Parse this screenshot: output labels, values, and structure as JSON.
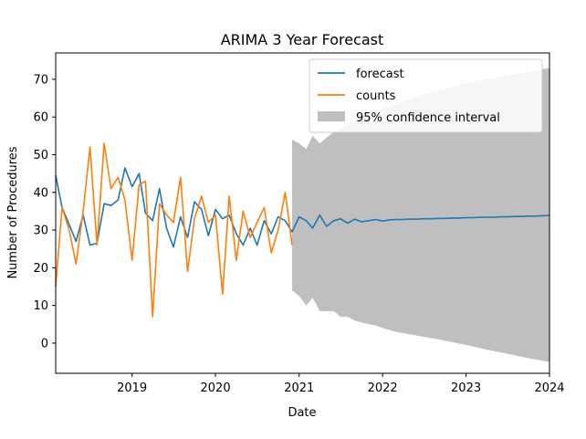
{
  "chart_data": {
    "type": "line",
    "title": "ARIMA 3 Year Forecast",
    "xlabel": "Date",
    "ylabel": "Number of Procedures",
    "xlim": [
      "2018-02-01",
      "2024-01-01"
    ],
    "ylim": [
      -8,
      77
    ],
    "x_ticks": [
      {
        "label": "2019",
        "date": "2019-01-01"
      },
      {
        "label": "2020",
        "date": "2020-01-01"
      },
      {
        "label": "2021",
        "date": "2021-01-01"
      },
      {
        "label": "2022",
        "date": "2022-01-01"
      },
      {
        "label": "2023",
        "date": "2023-01-01"
      },
      {
        "label": "2024",
        "date": "2024-01-01"
      }
    ],
    "y_ticks": [
      0,
      10,
      20,
      30,
      40,
      50,
      60,
      70
    ],
    "grid": false,
    "legend_position": "top-right",
    "legend": {
      "forecast": "forecast",
      "counts": "counts",
      "interval": "95% confidence interval"
    },
    "colors": {
      "forecast": "#1f77b4",
      "counts": "#ff7f0e",
      "interval": "#bfbfbf"
    },
    "series": [
      {
        "name": "forecast",
        "x": [
          "2018-02-01",
          "2018-03-01",
          "2018-04-01",
          "2018-05-01",
          "2018-06-01",
          "2018-07-01",
          "2018-08-01",
          "2018-09-01",
          "2018-10-01",
          "2018-11-01",
          "2018-12-01",
          "2019-01-01",
          "2019-02-01",
          "2019-03-01",
          "2019-04-01",
          "2019-05-01",
          "2019-06-01",
          "2019-07-01",
          "2019-08-01",
          "2019-09-01",
          "2019-10-01",
          "2019-11-01",
          "2019-12-01",
          "2020-01-01",
          "2020-02-01",
          "2020-03-01",
          "2020-04-01",
          "2020-05-01",
          "2020-06-01",
          "2020-07-01",
          "2020-08-01",
          "2020-09-01",
          "2020-10-01",
          "2020-11-01",
          "2020-12-01",
          "2021-01-01",
          "2021-02-01",
          "2021-03-01",
          "2021-04-01",
          "2021-05-01",
          "2021-06-01",
          "2021-07-01",
          "2021-08-01",
          "2021-09-01",
          "2021-10-01",
          "2021-11-01",
          "2021-12-01",
          "2022-01-01",
          "2022-02-01",
          "2022-03-01",
          "2022-04-01",
          "2022-05-01",
          "2022-06-01",
          "2022-07-01",
          "2022-08-01",
          "2022-09-01",
          "2022-10-01",
          "2022-11-01",
          "2022-12-01",
          "2023-01-01",
          "2023-02-01",
          "2023-03-01",
          "2023-04-01",
          "2023-05-01",
          "2023-06-01",
          "2023-07-01",
          "2023-08-01",
          "2023-09-01",
          "2023-10-01",
          "2023-11-01",
          "2023-12-01",
          "2024-01-01"
        ],
        "values": [
          44.5,
          36,
          31.5,
          27,
          34,
          26,
          26.5,
          37,
          36.5,
          38,
          46.5,
          41.5,
          45,
          34.5,
          32.5,
          41,
          30.5,
          25.5,
          33.5,
          28,
          37.5,
          35.5,
          28.5,
          35.5,
          33,
          34,
          29,
          26,
          30.5,
          26,
          32.5,
          29,
          33.5,
          32.5,
          29.5,
          33.5,
          32.5,
          30.5,
          34,
          31,
          32.5,
          33,
          31.8,
          32.9,
          32.2,
          32.5,
          32.8,
          32.4,
          32.7,
          32.8,
          32.8,
          32.9,
          32.9,
          33,
          33,
          33.1,
          33.1,
          33.2,
          33.2,
          33.3,
          33.3,
          33.4,
          33.4,
          33.4,
          33.5,
          33.5,
          33.6,
          33.6,
          33.7,
          33.7,
          33.8,
          33.9
        ]
      },
      {
        "name": "counts",
        "x": [
          "2018-02-01",
          "2018-03-01",
          "2018-04-01",
          "2018-05-01",
          "2018-06-01",
          "2018-07-01",
          "2018-08-01",
          "2018-09-01",
          "2018-10-01",
          "2018-11-01",
          "2018-12-01",
          "2019-01-01",
          "2019-02-01",
          "2019-03-01",
          "2019-04-01",
          "2019-05-01",
          "2019-06-01",
          "2019-07-01",
          "2019-08-01",
          "2019-09-01",
          "2019-10-01",
          "2019-11-01",
          "2019-12-01",
          "2020-01-01",
          "2020-02-01",
          "2020-03-01",
          "2020-04-01",
          "2020-05-01",
          "2020-06-01",
          "2020-07-01",
          "2020-08-01",
          "2020-09-01",
          "2020-10-01",
          "2020-11-01",
          "2020-12-01"
        ],
        "values": [
          15,
          36,
          30,
          21,
          35,
          52,
          26,
          53,
          41,
          44,
          38,
          22,
          42,
          43,
          7,
          37,
          34,
          32,
          44,
          19,
          33,
          39,
          32,
          34,
          13,
          39,
          22,
          35,
          28,
          32,
          36,
          24,
          30,
          40,
          26
        ]
      },
      {
        "name": "95% confidence interval",
        "x": [
          "2020-12-01",
          "2021-01-01",
          "2021-02-01",
          "2021-03-01",
          "2021-04-01",
          "2021-05-01",
          "2021-06-01",
          "2021-07-01",
          "2021-08-01",
          "2021-09-01",
          "2021-10-01",
          "2021-11-01",
          "2021-12-01",
          "2022-01-01",
          "2022-03-01",
          "2022-06-01",
          "2022-09-01",
          "2023-01-01",
          "2023-04-01",
          "2023-07-01",
          "2023-10-01",
          "2024-01-01"
        ],
        "upper": [
          54,
          53,
          51.5,
          55,
          53,
          54.5,
          56,
          57,
          58,
          59,
          59.5,
          60,
          61,
          62,
          63.5,
          65.5,
          67,
          69,
          70,
          71,
          72,
          73
        ],
        "lower": [
          14,
          12.5,
          10,
          12,
          8.5,
          8.5,
          8.5,
          7,
          7,
          6,
          5.5,
          5,
          4.7,
          4,
          3,
          2,
          1,
          -0.5,
          -1.7,
          -2.8,
          -4,
          -5
        ]
      }
    ]
  }
}
